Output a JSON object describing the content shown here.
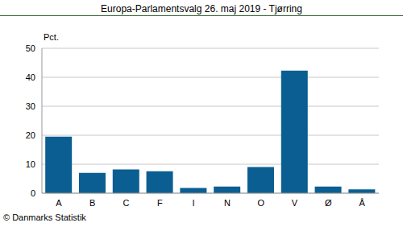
{
  "chart_data": {
    "type": "bar",
    "title": "Europa-Parlamentsvalg 26. maj 2019 - Tjørring",
    "ylabel": "Pct.",
    "source": "© Danmarks Statistik",
    "categories": [
      "A",
      "B",
      "C",
      "F",
      "I",
      "N",
      "O",
      "V",
      "Ø",
      "Å"
    ],
    "values": [
      19.5,
      7.0,
      8.2,
      7.6,
      1.8,
      2.3,
      9.0,
      42.3,
      2.3,
      1.3
    ],
    "color": "#0b5e91",
    "ylim": [
      0,
      50
    ],
    "yticks": [
      0,
      10,
      20,
      30,
      40,
      50
    ],
    "grid": true
  }
}
